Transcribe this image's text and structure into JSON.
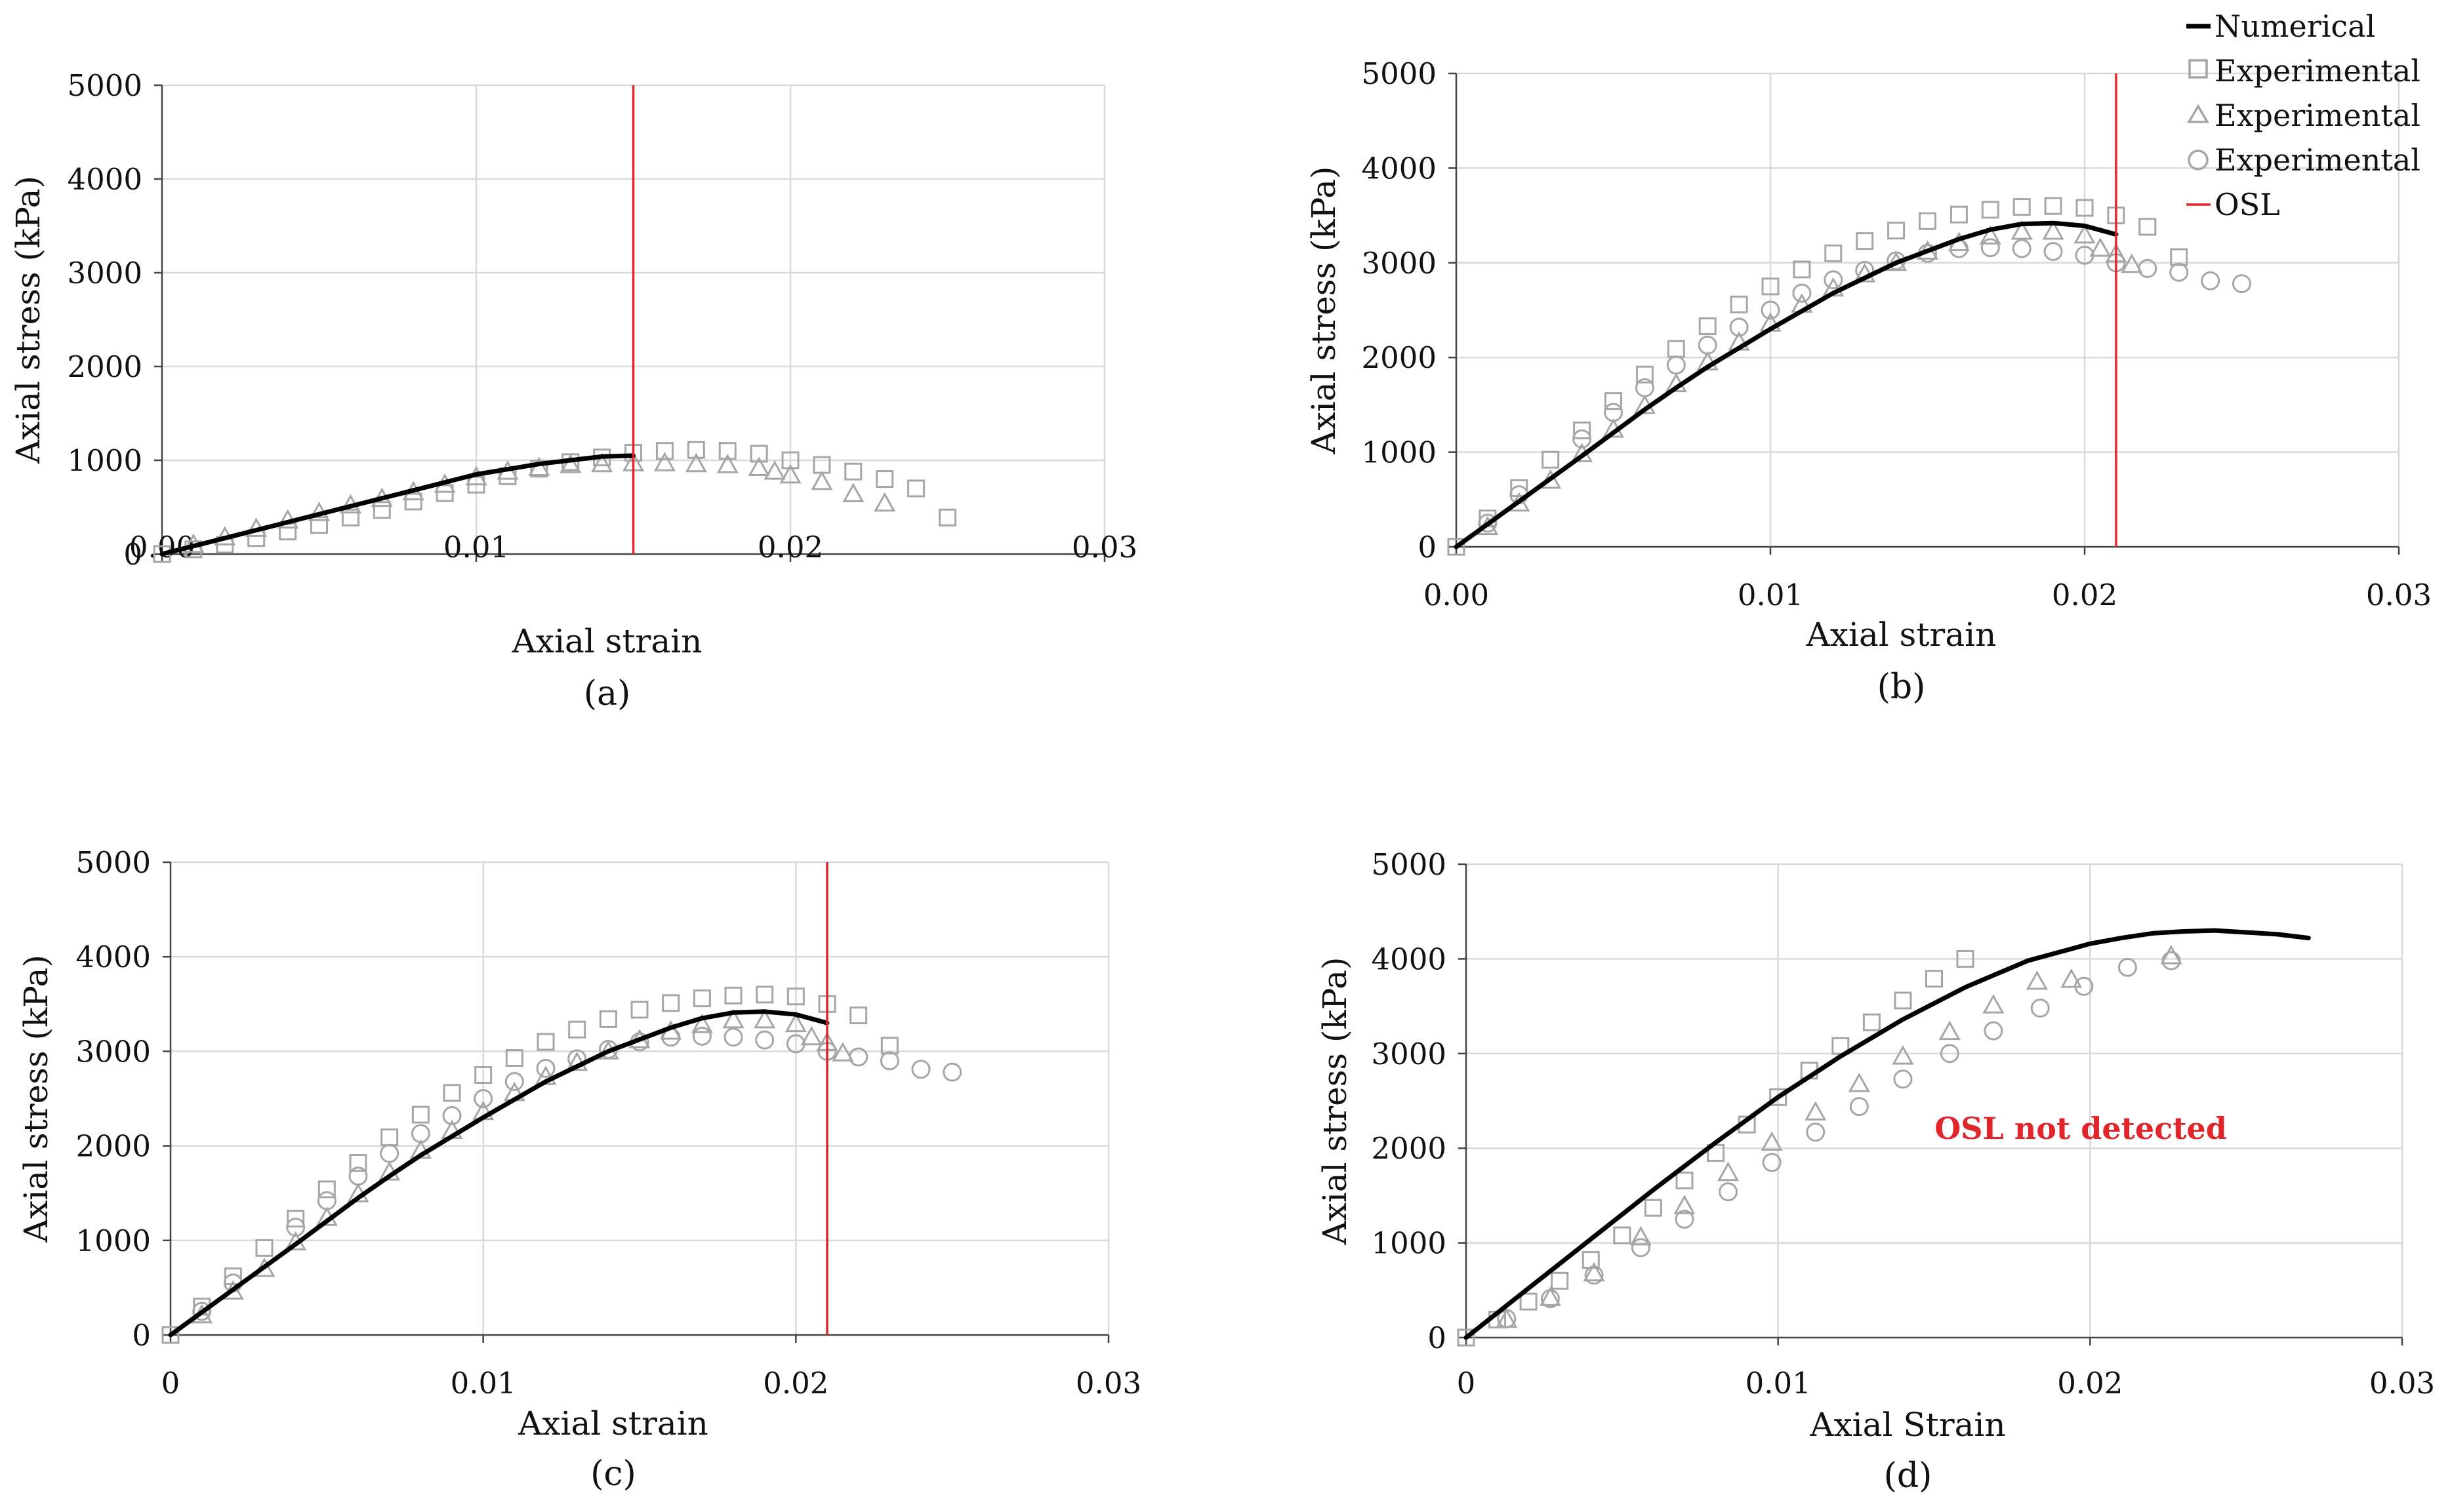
{
  "legend": {
    "numerical": "Numerical",
    "experimental_1": "Experimental",
    "experimental_2": "Experimental",
    "experimental_3": "Experimental",
    "osl": "OSL"
  },
  "colors": {
    "numerical": "#000000",
    "experimental": "#a6a6a6",
    "osl": "#e0262a",
    "grid": "#d9d9d9",
    "axis": "#444444"
  },
  "chart_data": [
    {
      "id": "a",
      "caption": "(a)",
      "type": "scatter",
      "xlabel": "Axial strain",
      "ylabel": "Axial stress (kPa)",
      "xlim": [
        0,
        0.03
      ],
      "ylim": [
        0,
        5000
      ],
      "xticks": [
        "0.00",
        "0.01",
        "0.02",
        "0.03"
      ],
      "yticks": [
        "0",
        "1000",
        "2000",
        "3000",
        "4000",
        "5000"
      ],
      "osl": 0.015,
      "annotation": "",
      "numerical": {
        "x": [
          0,
          0.002,
          0.004,
          0.006,
          0.008,
          0.01,
          0.012,
          0.014,
          0.015
        ],
        "y": [
          0,
          170,
          340,
          510,
          680,
          850,
          960,
          1040,
          1050
        ]
      },
      "experimental_square": {
        "x": [
          0,
          0.001,
          0.002,
          0.003,
          0.004,
          0.005,
          0.006,
          0.007,
          0.008,
          0.009,
          0.01,
          0.011,
          0.012,
          0.013,
          0.014,
          0.015,
          0.016,
          0.017,
          0.018,
          0.019,
          0.02,
          0.021,
          0.022,
          0.023,
          0.024,
          0.025
        ],
        "y": [
          0,
          50,
          100,
          170,
          240,
          310,
          390,
          470,
          560,
          650,
          740,
          830,
          910,
          980,
          1030,
          1080,
          1100,
          1110,
          1100,
          1070,
          1000,
          950,
          880,
          800,
          700,
          390
        ]
      },
      "experimental_triangle": {
        "x": [
          0.001,
          0.002,
          0.003,
          0.004,
          0.005,
          0.006,
          0.007,
          0.008,
          0.009,
          0.01,
          0.011,
          0.012,
          0.013,
          0.014,
          0.015,
          0.016,
          0.017,
          0.018,
          0.019,
          0.0195,
          0.02,
          0.021,
          0.022,
          0.023
        ],
        "y": [
          100,
          180,
          270,
          360,
          440,
          520,
          590,
          660,
          740,
          820,
          880,
          920,
          950,
          960,
          970,
          970,
          960,
          950,
          920,
          880,
          840,
          770,
          640,
          540
        ]
      },
      "experimental_circle": {
        "x": [],
        "y": []
      }
    },
    {
      "id": "b",
      "caption": "(b)",
      "type": "scatter",
      "xlabel": "Axial strain",
      "ylabel": "Axial stress (kPa)",
      "xlim": [
        0,
        0.03
      ],
      "ylim": [
        0,
        5000
      ],
      "xticks": [
        "0.00",
        "0.01",
        "0.02",
        "0.03"
      ],
      "yticks": [
        "0",
        "1000",
        "2000",
        "3000",
        "4000",
        "5000"
      ],
      "osl": 0.021,
      "annotation": "",
      "numerical": {
        "x": [
          0,
          0.002,
          0.004,
          0.006,
          0.007,
          0.008,
          0.01,
          0.012,
          0.014,
          0.016,
          0.017,
          0.018,
          0.019,
          0.02,
          0.021
        ],
        "y": [
          0,
          480,
          960,
          1450,
          1680,
          1900,
          2300,
          2680,
          3000,
          3250,
          3350,
          3410,
          3420,
          3390,
          3300
        ]
      },
      "experimental_square": {
        "x": [
          0,
          0.001,
          0.002,
          0.003,
          0.004,
          0.005,
          0.006,
          0.007,
          0.008,
          0.009,
          0.01,
          0.011,
          0.012,
          0.013,
          0.014,
          0.015,
          0.016,
          0.017,
          0.018,
          0.019,
          0.02,
          0.021,
          0.022,
          0.023
        ],
        "y": [
          0,
          300,
          620,
          920,
          1230,
          1540,
          1820,
          2090,
          2330,
          2560,
          2750,
          2930,
          3100,
          3230,
          3340,
          3440,
          3510,
          3560,
          3590,
          3600,
          3580,
          3500,
          3380,
          3060
        ]
      },
      "experimental_triangle": {
        "x": [
          0.001,
          0.002,
          0.003,
          0.004,
          0.005,
          0.006,
          0.007,
          0.008,
          0.009,
          0.01,
          0.011,
          0.012,
          0.013,
          0.014,
          0.015,
          0.016,
          0.017,
          0.018,
          0.019,
          0.02,
          0.0205,
          0.021,
          0.0215
        ],
        "y": [
          210,
          460,
          700,
          980,
          1240,
          1490,
          1720,
          1950,
          2160,
          2360,
          2560,
          2730,
          2880,
          3000,
          3120,
          3210,
          3280,
          3330,
          3330,
          3290,
          3150,
          3090,
          2980
        ]
      },
      "experimental_circle": {
        "x": [
          0.001,
          0.002,
          0.004,
          0.005,
          0.006,
          0.007,
          0.008,
          0.009,
          0.01,
          0.011,
          0.012,
          0.013,
          0.014,
          0.015,
          0.016,
          0.017,
          0.018,
          0.019,
          0.02,
          0.021,
          0.022,
          0.023,
          0.024,
          0.025
        ],
        "y": [
          250,
          550,
          1140,
          1420,
          1680,
          1920,
          2130,
          2320,
          2500,
          2680,
          2820,
          2920,
          3020,
          3100,
          3150,
          3160,
          3150,
          3120,
          3080,
          3000,
          2940,
          2900,
          2810,
          2780
        ]
      }
    },
    {
      "id": "c",
      "caption": "(c)",
      "type": "scatter",
      "xlabel": "Axial strain",
      "ylabel": "Axial stress (kPa)",
      "xlim": [
        0,
        0.03
      ],
      "ylim": [
        0,
        5000
      ],
      "xticks": [
        "0",
        "0.01",
        "0.02",
        "0.03"
      ],
      "yticks": [
        "0",
        "1000",
        "2000",
        "3000",
        "4000",
        "5000"
      ],
      "osl": 0.021,
      "annotation": "",
      "numerical": {
        "x": [
          0,
          0.002,
          0.004,
          0.006,
          0.007,
          0.008,
          0.01,
          0.012,
          0.014,
          0.016,
          0.017,
          0.018,
          0.019,
          0.02,
          0.021
        ],
        "y": [
          0,
          480,
          960,
          1450,
          1680,
          1900,
          2300,
          2680,
          3000,
          3250,
          3350,
          3410,
          3420,
          3390,
          3300
        ]
      },
      "experimental_square": {
        "x": [
          0,
          0.001,
          0.002,
          0.003,
          0.004,
          0.005,
          0.006,
          0.007,
          0.008,
          0.009,
          0.01,
          0.011,
          0.012,
          0.013,
          0.014,
          0.015,
          0.016,
          0.017,
          0.018,
          0.019,
          0.02,
          0.021,
          0.022,
          0.023
        ],
        "y": [
          0,
          300,
          620,
          920,
          1230,
          1540,
          1820,
          2090,
          2330,
          2560,
          2750,
          2930,
          3100,
          3230,
          3340,
          3440,
          3510,
          3560,
          3590,
          3600,
          3580,
          3500,
          3380,
          3060
        ]
      },
      "experimental_triangle": {
        "x": [
          0.001,
          0.002,
          0.003,
          0.004,
          0.005,
          0.006,
          0.007,
          0.008,
          0.009,
          0.01,
          0.011,
          0.012,
          0.013,
          0.014,
          0.015,
          0.016,
          0.017,
          0.018,
          0.019,
          0.02,
          0.0205,
          0.021,
          0.0215
        ],
        "y": [
          210,
          460,
          700,
          980,
          1240,
          1490,
          1720,
          1950,
          2160,
          2360,
          2560,
          2730,
          2880,
          3000,
          3120,
          3210,
          3280,
          3330,
          3330,
          3290,
          3150,
          3090,
          2980
        ]
      },
      "experimental_circle": {
        "x": [
          0.001,
          0.002,
          0.004,
          0.005,
          0.006,
          0.007,
          0.008,
          0.009,
          0.01,
          0.011,
          0.012,
          0.013,
          0.014,
          0.015,
          0.016,
          0.017,
          0.018,
          0.019,
          0.02,
          0.021,
          0.022,
          0.023,
          0.024,
          0.025
        ],
        "y": [
          250,
          550,
          1140,
          1420,
          1680,
          1920,
          2130,
          2320,
          2500,
          2680,
          2820,
          2920,
          3020,
          3100,
          3150,
          3160,
          3150,
          3120,
          3080,
          3000,
          2940,
          2900,
          2810,
          2780
        ]
      }
    },
    {
      "id": "d",
      "caption": "(d)",
      "type": "scatter",
      "xlabel": "Axial Strain",
      "ylabel": "Axial stress (kPa)",
      "xlim": [
        0,
        0.03
      ],
      "ylim": [
        0,
        5000
      ],
      "xticks": [
        "0",
        "0.01",
        "0.02",
        "0.03"
      ],
      "yticks": [
        "0",
        "1000",
        "2000",
        "3000",
        "4000",
        "5000"
      ],
      "osl": null,
      "annotation": "OSL not detected",
      "numerical": {
        "x": [
          0,
          0.002,
          0.004,
          0.006,
          0.008,
          0.01,
          0.012,
          0.014,
          0.016,
          0.018,
          0.02,
          0.021,
          0.022,
          0.023,
          0.024,
          0.025,
          0.026,
          0.027
        ],
        "y": [
          0,
          520,
          1040,
          1560,
          2060,
          2540,
          2970,
          3360,
          3700,
          3980,
          4160,
          4220,
          4270,
          4290,
          4300,
          4280,
          4260,
          4220
        ]
      },
      "experimental_square": {
        "x": [
          0,
          0.001,
          0.002,
          0.003,
          0.004,
          0.005,
          0.006,
          0.007,
          0.008,
          0.009,
          0.01,
          0.011,
          0.012,
          0.013,
          0.014,
          0.015,
          0.016
        ],
        "y": [
          0,
          190,
          380,
          600,
          820,
          1080,
          1370,
          1660,
          1950,
          2250,
          2540,
          2820,
          3080,
          3330,
          3560,
          3790,
          4000
        ]
      },
      "experimental_triangle": {
        "x": [
          0.0013,
          0.0027,
          0.0041,
          0.0056,
          0.007,
          0.0084,
          0.0098,
          0.0112,
          0.0126,
          0.014,
          0.0155,
          0.0169,
          0.0183,
          0.0194,
          0.0226
        ],
        "y": [
          190,
          420,
          680,
          1060,
          1390,
          1740,
          2060,
          2380,
          2680,
          2970,
          3230,
          3510,
          3760,
          3780,
          4030
        ]
      },
      "experimental_circle": {
        "x": [
          0.0013,
          0.0027,
          0.0041,
          0.0056,
          0.007,
          0.0084,
          0.0098,
          0.0112,
          0.0126,
          0.014,
          0.0155,
          0.0169,
          0.0184,
          0.0198,
          0.0212,
          0.0226
        ],
        "y": [
          200,
          410,
          660,
          950,
          1250,
          1540,
          1850,
          2170,
          2440,
          2730,
          3000,
          3240,
          3480,
          3710,
          3910,
          3980
        ]
      }
    }
  ]
}
